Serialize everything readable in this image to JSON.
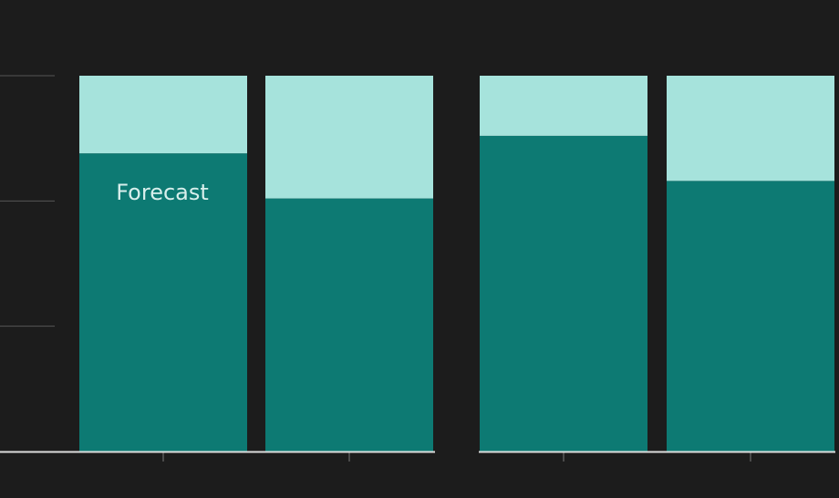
{
  "chart_data": {
    "type": "stacked_bar",
    "categories": [
      null,
      null,
      null,
      null
    ],
    "series": [
      {
        "color": "#0d7a73",
        "values": [
          2.38,
          2.02,
          2.52,
          2.16
        ]
      },
      {
        "color": "#a6e3dc",
        "values": [
          0.62,
          0.98,
          0.48,
          0.84
        ]
      }
    ],
    "ylim": [
      0,
      3
    ],
    "yticks": [
      1,
      2,
      3
    ],
    "grid": true,
    "annotation": "Forecast"
  }
}
